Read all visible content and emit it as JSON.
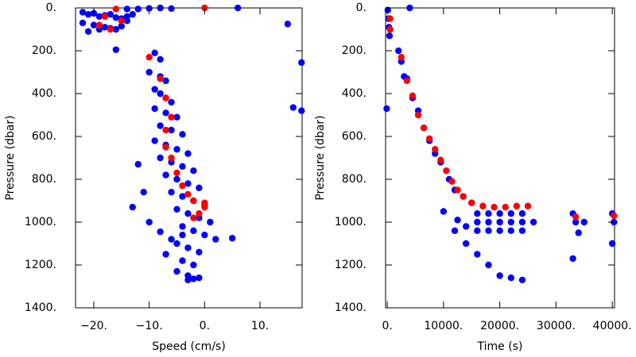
{
  "chart_data": [
    {
      "type": "scatter",
      "xlabel": "Speed (cm/s)",
      "ylabel": "Pressure (dbar)",
      "xlim": [
        -23.3,
        17.6
      ],
      "ylim": [
        1400,
        0
      ],
      "xticks": [
        {
          "value": -20,
          "label": "−20."
        },
        {
          "value": -10,
          "label": "−10."
        },
        {
          "value": 0,
          "label": "0."
        },
        {
          "value": 10,
          "label": "10."
        }
      ],
      "yticks": [
        {
          "value": 0,
          "label": "0."
        },
        {
          "value": 200,
          "label": "200."
        },
        {
          "value": 400,
          "label": "400."
        },
        {
          "value": 600,
          "label": "600."
        },
        {
          "value": 800,
          "label": "800."
        },
        {
          "value": 1000,
          "label": "1000."
        },
        {
          "value": 1200,
          "label": "1200."
        },
        {
          "value": 1400,
          "label": "1400."
        }
      ],
      "series": [
        {
          "color": "#0000ff",
          "x": [
            -22,
            -21,
            -20,
            -19,
            -18,
            -17,
            -16,
            -15,
            -14,
            -22,
            -20,
            -18,
            -16,
            -14,
            -21,
            -19,
            -17,
            -15,
            -13,
            -12,
            -10,
            -8,
            -6,
            -14,
            -16,
            6,
            15,
            16,
            17.5,
            17.5,
            -9,
            -8,
            -10,
            -8,
            -7,
            -9,
            -8,
            -7,
            -6,
            -9,
            -7,
            -5,
            -8,
            -6,
            -4,
            -9,
            -7,
            -5,
            -3,
            -8,
            -6,
            -4,
            -2,
            -7,
            -5,
            -3,
            -1,
            -6,
            -4,
            -2,
            0,
            -5,
            -3,
            -1,
            1,
            -4,
            -2,
            0,
            2,
            -5,
            -3,
            -1,
            -6,
            -4,
            -2,
            -7,
            -5,
            -3,
            -1,
            -3,
            -2,
            5,
            -12,
            -11,
            -13,
            -10,
            -8,
            -4
          ],
          "values": [
            20,
            30,
            25,
            40,
            35,
            30,
            45,
            50,
            40,
            70,
            80,
            90,
            100,
            60,
            110,
            100,
            95,
            85,
            30,
            5,
            2,
            0,
            3,
            5,
            195,
            0,
            75,
            465,
            255,
            480,
            210,
            240,
            300,
            320,
            340,
            380,
            400,
            420,
            440,
            470,
            490,
            510,
            550,
            570,
            590,
            620,
            640,
            660,
            680,
            700,
            720,
            740,
            760,
            780,
            800,
            820,
            840,
            860,
            880,
            900,
            920,
            940,
            960,
            980,
            1000,
            1020,
            1040,
            1060,
            1080,
            1100,
            1120,
            1140,
            1080,
            1180,
            1200,
            1150,
            1230,
            1250,
            1260,
            1270,
            1265,
            1075,
            730,
            860,
            930,
            1000,
            1045,
            1060
          ]
        },
        {
          "color": "#ff0000",
          "x": [
            -18,
            -19,
            -17,
            -15,
            -10,
            -8,
            -7,
            -6,
            -7,
            -7,
            -6,
            -5,
            -4,
            -3,
            -2,
            0,
            0,
            -1,
            -2,
            0,
            -16
          ],
          "values": [
            40,
            80,
            100,
            60,
            230,
            330,
            420,
            510,
            570,
            650,
            700,
            770,
            830,
            870,
            900,
            910,
            930,
            960,
            980,
            0,
            5
          ]
        }
      ]
    },
    {
      "type": "scatter",
      "xlabel": "Time (s)",
      "ylabel": "Pressure (dbar)",
      "xlim": [
        -300,
        40400
      ],
      "ylim": [
        1400,
        0
      ],
      "xticks": [
        {
          "value": 0,
          "label": "0."
        },
        {
          "value": 10000,
          "label": "10000."
        },
        {
          "value": 20000,
          "label": "20000."
        },
        {
          "value": 30000,
          "label": "30000."
        },
        {
          "value": 40000,
          "label": "40000."
        }
      ],
      "yticks": [
        {
          "value": 0,
          "label": "0."
        },
        {
          "value": 200,
          "label": "200."
        },
        {
          "value": 400,
          "label": "400."
        },
        {
          "value": 600,
          "label": "600."
        },
        {
          "value": 800,
          "label": "800."
        },
        {
          "value": 1000,
          "label": "1000."
        },
        {
          "value": 1200,
          "label": "1200."
        },
        {
          "value": 1400,
          "label": "1400."
        }
      ],
      "series": [
        {
          "color": "#0000ff",
          "x": [
            100,
            200,
            300,
            400,
            -100,
            4000,
            2000,
            2500,
            3000,
            3500,
            4500,
            5500,
            6500,
            7500,
            8500,
            9500,
            11000,
            12000,
            13500,
            15000,
            16000,
            18000,
            20000,
            22000,
            24000,
            16000,
            18000,
            20000,
            22000,
            24000,
            26000,
            16000,
            18000,
            20000,
            22000,
            24000,
            10000,
            12000,
            14000,
            16000,
            18000,
            20000,
            22000,
            24000,
            33000,
            33500,
            34000,
            33000,
            35000,
            40000,
            40300,
            40000,
            14000,
            12500
          ],
          "values": [
            10,
            50,
            90,
            130,
            470,
            0,
            200,
            250,
            320,
            330,
            420,
            480,
            560,
            620,
            680,
            720,
            800,
            850,
            880,
            910,
            960,
            960,
            960,
            960,
            960,
            1000,
            1000,
            1000,
            1000,
            1000,
            1000,
            1040,
            1040,
            1040,
            1040,
            1040,
            950,
            1040,
            1100,
            1150,
            1200,
            1250,
            1260,
            1270,
            960,
            1000,
            1050,
            1170,
            1000,
            960,
            1000,
            1100,
            1020,
            990
          ]
        },
        {
          "color": "#ff0000",
          "x": [
            500,
            500,
            2500,
            3500,
            4500,
            5500,
            6500,
            7500,
            8500,
            9500,
            10500,
            11500,
            12500,
            13500,
            15000,
            17000,
            19000,
            21000,
            23000,
            25000,
            33500,
            40300
          ],
          "values": [
            50,
            100,
            230,
            340,
            410,
            500,
            560,
            610,
            660,
            710,
            760,
            810,
            850,
            880,
            910,
            925,
            930,
            930,
            925,
            925,
            975,
            970
          ]
        }
      ]
    }
  ]
}
